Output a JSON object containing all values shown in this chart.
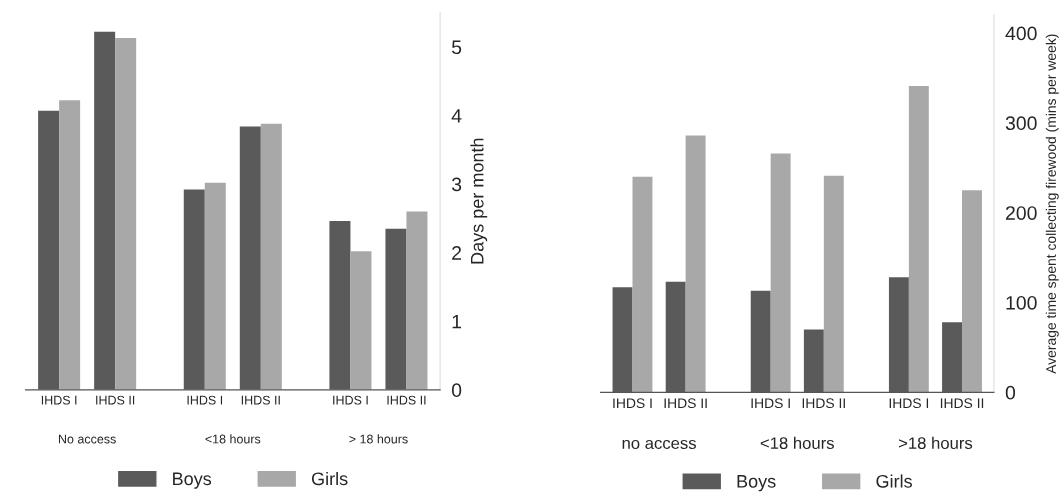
{
  "chart_data": [
    {
      "type": "bar",
      "categories": [
        "IHDS I",
        "IHDS II",
        "IHDS I",
        "IHDS II",
        "IHDS I",
        "IHDS II"
      ],
      "ylabel": "Days per month",
      "ylim": [
        0,
        5.5
      ],
      "yticks": [
        0,
        1,
        2,
        3,
        4,
        5
      ],
      "legend": "bottom",
      "annotations": [
        "No access",
        "<18 hours",
        "> 18 hours"
      ],
      "series": [
        {
          "name": "Boys",
          "color": "#5a5a5a",
          "values": [
            4.07,
            5.22,
            2.92,
            3.84,
            2.46,
            2.35
          ]
        },
        {
          "name": "Girls",
          "color": "#a8a8a8",
          "values": [
            4.22,
            5.13,
            3.02,
            3.88,
            2.02,
            2.6
          ]
        }
      ]
    },
    {
      "type": "bar",
      "categories": [
        "IHDS I",
        "IHDS II",
        "IHDS I",
        "IHDS II",
        "IHDS I",
        "IHDS II"
      ],
      "ylabel": "Average time spent collecting firewood (mins per week)",
      "ylim": [
        0,
        420
      ],
      "yticks": [
        0,
        100,
        200,
        300,
        400
      ],
      "legend": "bottom",
      "annotations": [
        "no access",
        "<18 hours",
        ">18 hours"
      ],
      "series": [
        {
          "name": "Boys",
          "color": "#5a5a5a",
          "values": [
            117,
            123,
            113,
            70,
            128,
            78
          ]
        },
        {
          "name": "Girls",
          "color": "#a8a8a8",
          "values": [
            240,
            286,
            266,
            241,
            341,
            225
          ]
        }
      ]
    }
  ]
}
